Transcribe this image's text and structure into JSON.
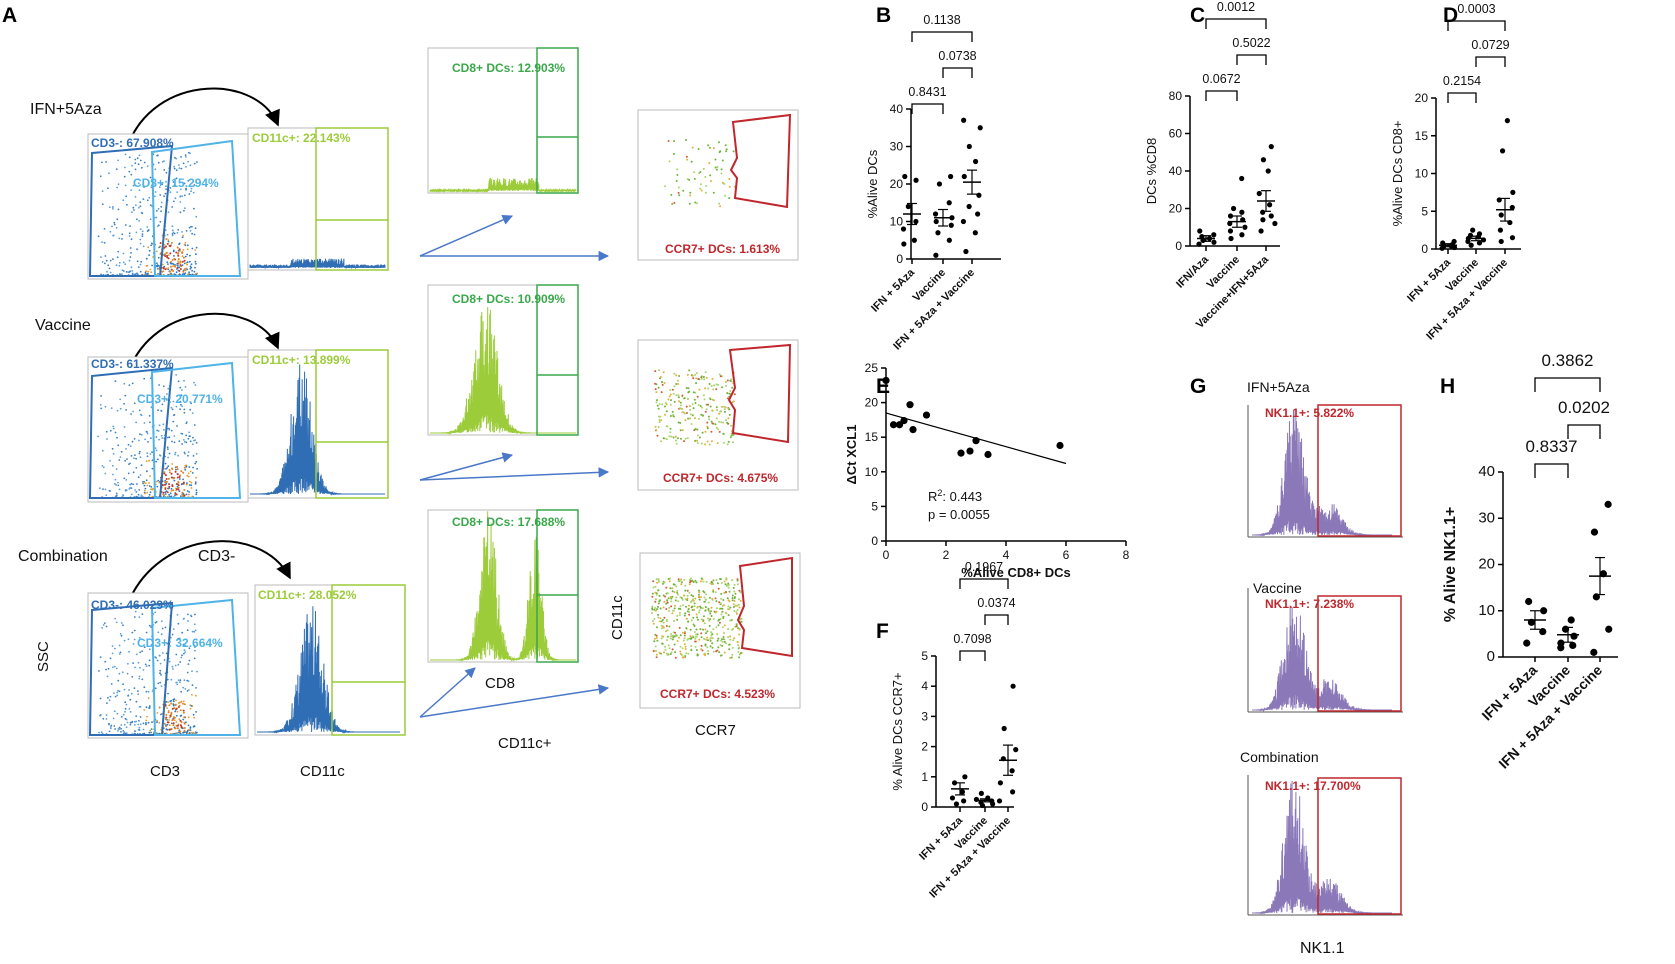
{
  "figure": {
    "panel_letters": [
      "A",
      "B",
      "C",
      "D",
      "E",
      "F",
      "G",
      "H"
    ]
  },
  "panel_A": {
    "rows": [
      {
        "group": "IFN+5Aza",
        "cd3_neg": "CD3-: 67.908%",
        "cd3_pos": "CD3+: 15.294%",
        "cd11c": "CD11c+: 22.143%",
        "cd8": "CD8+ DCs: 12.903%",
        "ccr7": "CCR7+ DCs: 1.613%"
      },
      {
        "group": "Vaccine",
        "cd3_neg": "CD3-: 61.337%",
        "cd3_pos": "CD3+: 20.771%",
        "cd11c": "CD11c+: 13.899%",
        "cd8": "CD8+ DCs: 10.909%",
        "ccr7": "CCR7+ DCs: 4.675%"
      },
      {
        "group": "Combination",
        "cd3_neg": "CD3-: 46.029%",
        "cd3_pos": "CD3+: 32.664%",
        "cd11c": "CD11c+: 28.052%",
        "cd8": "CD8+ DCs: 17.688%",
        "ccr7": "CCR7+ DCs: 4.523%"
      }
    ],
    "gate_arrow_label": "CD3-",
    "axis_labels": {
      "ssc": "SSC",
      "cd3": "CD3",
      "cd11c": "CD11c",
      "cd8": "CD8",
      "cd11c_y": "CD11c",
      "ccr7": "CCR7",
      "cd11c_plus": "CD11c+"
    }
  },
  "panel_G": {
    "titles": [
      "IFN+5Aza",
      "Vaccine",
      "Combination"
    ],
    "gates": [
      "NK1.1+: 5.822%",
      "NK1.1+: 7.238%",
      "NK1.1+: 17.700%"
    ],
    "xlabel": "NK1.1"
  },
  "colors": {
    "cd3_blue": "#2f6db5",
    "cd3_light": "#4fb3e8",
    "cd11c_green": "#9ccc3a",
    "cd8_green": "#3aa84a",
    "ccr7_red": "#c0272d",
    "nk_purple": "#8a78b8",
    "arrow_blue": "#4a78c8"
  },
  "chart_data": [
    {
      "id": "B",
      "type": "scatter",
      "ylabel": "%Alive DCs",
      "ylim": [
        0,
        40
      ],
      "yticks": [
        0,
        10,
        20,
        30,
        40
      ],
      "categories": [
        "IFN + 5Aza",
        "Vaccine",
        "IFN + 5Aza + Vaccine"
      ],
      "points": [
        [
          4,
          5,
          8,
          10,
          14,
          21,
          22
        ],
        [
          1,
          5,
          7,
          9,
          10,
          11,
          12,
          15,
          20,
          22
        ],
        [
          2,
          7,
          10,
          12,
          14,
          17,
          22,
          26,
          30,
          35,
          37
        ]
      ],
      "means": [
        12,
        11,
        20.5
      ],
      "sems": [
        2.8,
        2.2,
        3.2
      ],
      "comparisons": [
        {
          "from": 0,
          "to": 1,
          "p": "0.8431"
        },
        {
          "from": 1,
          "to": 2,
          "p": "0.0738"
        },
        {
          "from": 0,
          "to": 2,
          "p": "0.1138"
        }
      ]
    },
    {
      "id": "C",
      "type": "scatter",
      "ylabel": "DCs %CD8",
      "ylim": [
        0,
        80
      ],
      "yticks": [
        0,
        20,
        40,
        60,
        80
      ],
      "categories": [
        "IFN/Aza",
        "Vaccine",
        "Vaccine+IFN+5Aza"
      ],
      "points": [
        [
          1,
          2,
          3,
          4,
          5,
          6,
          8
        ],
        [
          4,
          6,
          8,
          10,
          12,
          14,
          16,
          18,
          20,
          36
        ],
        [
          8,
          12,
          14,
          16,
          18,
          22,
          28,
          40,
          46,
          53
        ]
      ],
      "means": [
        4,
        13,
        24
      ],
      "sems": [
        1.5,
        3,
        5.5
      ],
      "comparisons": [
        {
          "from": 0,
          "to": 1,
          "p": "0.0672"
        },
        {
          "from": 1,
          "to": 2,
          "p": "0.5022"
        },
        {
          "from": 0,
          "to": 2,
          "p": "0.0012"
        }
      ]
    },
    {
      "id": "D",
      "type": "scatter",
      "ylabel": "%Alive DCs CD8+",
      "ylim": [
        0,
        20
      ],
      "yticks": [
        0,
        5,
        10,
        15,
        20
      ],
      "categories": [
        "IFN + 5Aza",
        "Vaccine",
        "IFN + 5Aza + Vaccine"
      ],
      "points": [
        [
          0.1,
          0.2,
          0.3,
          0.4,
          0.5,
          0.6,
          0.8,
          1.0
        ],
        [
          0.5,
          0.8,
          1.0,
          1.2,
          1.4,
          1.6,
          1.8,
          2.0,
          2.5
        ],
        [
          1,
          1.5,
          2.5,
          3.5,
          4.5,
          5.5,
          6.5,
          7.5,
          13,
          17
        ]
      ],
      "means": [
        0.5,
        1.4,
        5.2
      ],
      "sems": [
        0.2,
        0.3,
        1.5
      ],
      "comparisons": [
        {
          "from": 0,
          "to": 1,
          "p": "0.2154"
        },
        {
          "from": 1,
          "to": 2,
          "p": "0.0729"
        },
        {
          "from": 0,
          "to": 2,
          "p": "0.0003"
        }
      ]
    },
    {
      "id": "E",
      "type": "scatter",
      "xlabel": "%Alive CD8+ DCs",
      "ylabel": "ΔCt XCL1",
      "xlim": [
        0,
        8
      ],
      "ylim": [
        0,
        25
      ],
      "xticks": [
        0,
        2,
        4,
        6,
        8
      ],
      "yticks": [
        0,
        5,
        10,
        15,
        20,
        25
      ],
      "x": [
        0.0,
        0.25,
        0.45,
        0.6,
        0.8,
        0.9,
        1.35,
        2.5,
        2.8,
        3.0,
        3.4,
        5.8
      ],
      "y": [
        23.2,
        16.8,
        16.8,
        17.4,
        19.7,
        16.1,
        18.2,
        12.7,
        13.0,
        14.5,
        12.5,
        13.8
      ],
      "fit": {
        "x": [
          0,
          6
        ],
        "y": [
          18.5,
          11.2
        ]
      },
      "r2_label": "R",
      "r2_sup": "2",
      "r2_value": ": 0.443",
      "p_label": "p = 0.0055"
    },
    {
      "id": "F",
      "type": "scatter",
      "ylabel": "% Alive DCs CCR7+",
      "ylim": [
        0,
        5
      ],
      "yticks": [
        0,
        1,
        2,
        3,
        4,
        5
      ],
      "categories": [
        "IFN + 5Aza",
        "Vaccine",
        "IFN + 5Aza + Vaccine"
      ],
      "points": [
        [
          0.1,
          0.2,
          0.3,
          0.5,
          0.8,
          1.0
        ],
        [
          0.05,
          0.1,
          0.15,
          0.2,
          0.25,
          0.3,
          0.45
        ],
        [
          0.2,
          0.5,
          0.8,
          1.2,
          1.6,
          1.9,
          2.6,
          4.0
        ]
      ],
      "means": [
        0.6,
        0.22,
        1.55
      ],
      "sems": [
        0.2,
        0.05,
        0.5
      ],
      "comparisons": [
        {
          "from": 0,
          "to": 1,
          "p": "0.7098"
        },
        {
          "from": 1,
          "to": 2,
          "p": "0.0374"
        },
        {
          "from": 0,
          "to": 2,
          "p": "0.1967"
        }
      ]
    },
    {
      "id": "H",
      "type": "scatter",
      "ylabel": "% Alive NK1.1+",
      "ylim": [
        0,
        40
      ],
      "yticks": [
        0,
        10,
        20,
        30,
        40
      ],
      "categories": [
        "IFN + 5Aza",
        "Vaccine",
        "IFN + 5Aza + Vaccine"
      ],
      "points": [
        [
          3,
          5.5,
          7.5,
          10,
          12
        ],
        [
          2,
          2.5,
          3,
          4.5,
          6,
          8
        ],
        [
          1,
          6,
          13,
          18,
          27,
          33
        ]
      ],
      "means": [
        8,
        4.8,
        17.5
      ],
      "sems": [
        2,
        1.6,
        4
      ],
      "comparisons": [
        {
          "from": 0,
          "to": 1,
          "p": "0.8337"
        },
        {
          "from": 1,
          "to": 2,
          "p": "0.0202"
        },
        {
          "from": 0,
          "to": 2,
          "p": "0.3862"
        }
      ]
    }
  ]
}
